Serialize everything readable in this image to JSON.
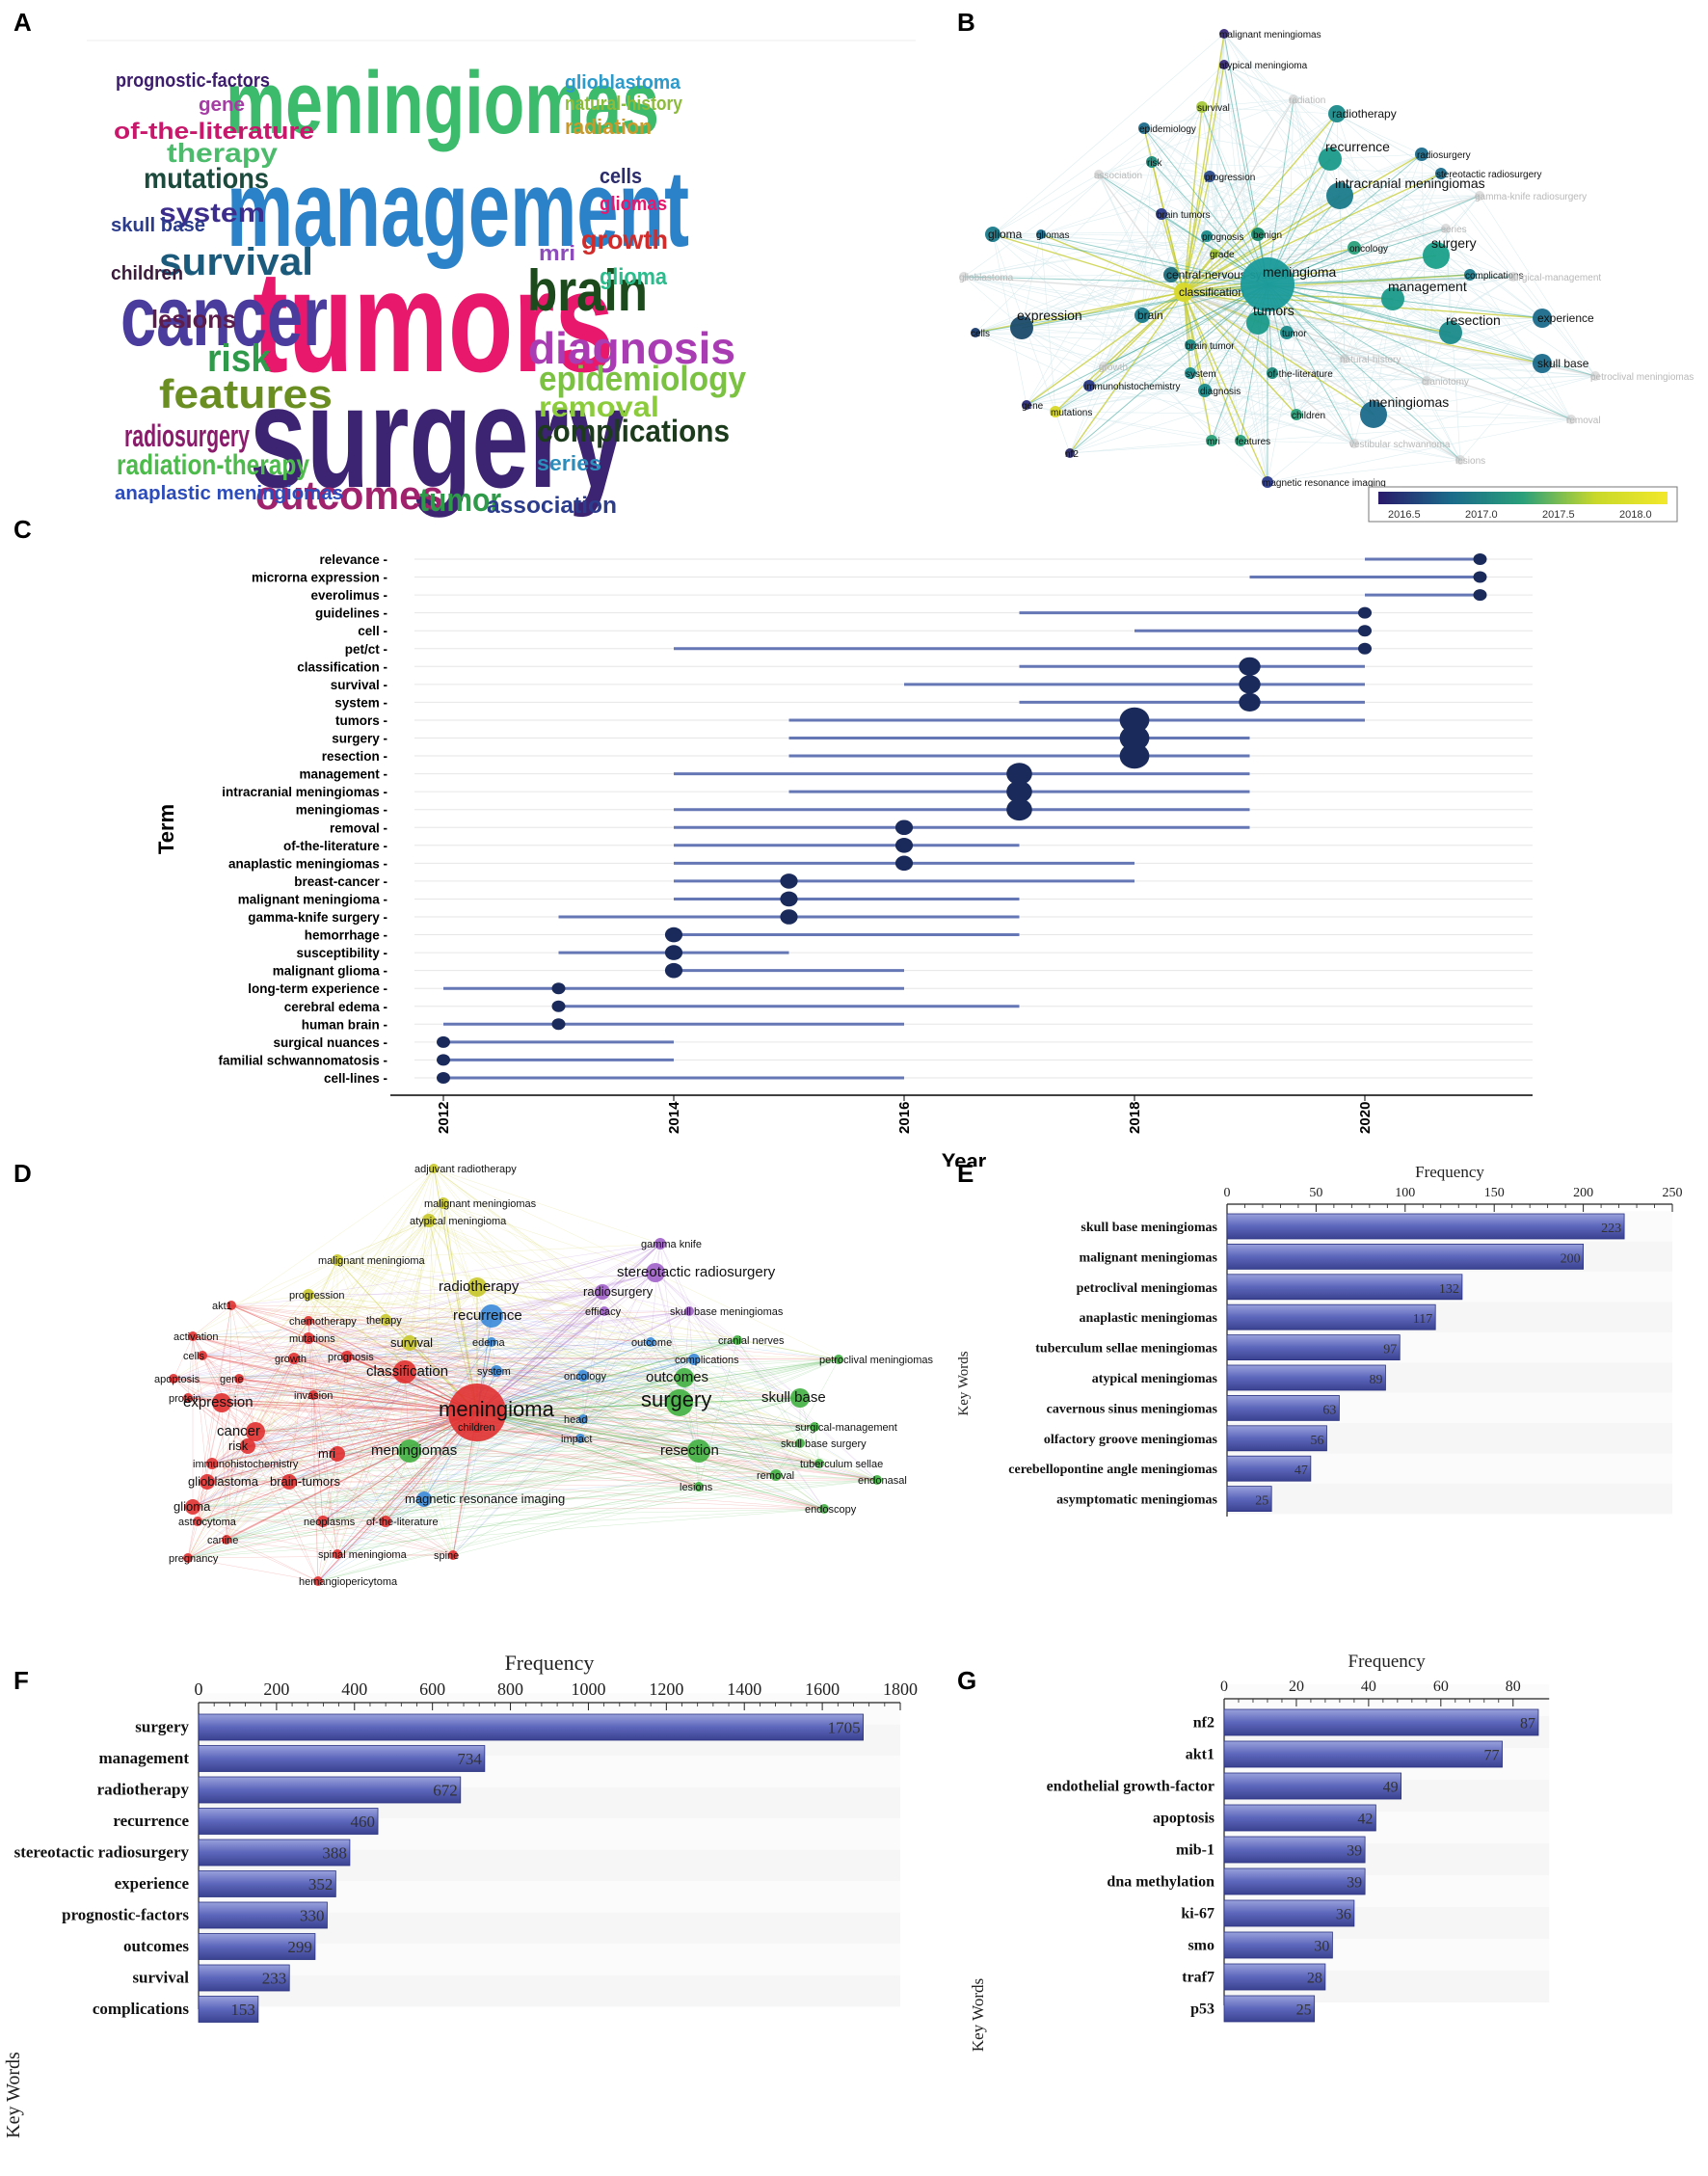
{
  "panel_labels": {
    "A": "A",
    "B": "B",
    "C": "C",
    "D": "D",
    "E": "E",
    "F": "F",
    "G": "G"
  },
  "wordcloud": {
    "words": [
      {
        "text": "meningiomas",
        "color": "#3dbb6c"
      },
      {
        "text": "management",
        "color": "#2c82c9"
      },
      {
        "text": "tumors",
        "color": "#e8186d"
      },
      {
        "text": "surgery",
        "color": "#3c2473"
      },
      {
        "text": "cancer",
        "color": "#4a3c9c"
      },
      {
        "text": "brain",
        "color": "#1c4a1c"
      },
      {
        "text": "diagnosis",
        "color": "#a93bb3"
      },
      {
        "text": "outcomes",
        "color": "#a1226c"
      },
      {
        "text": "features",
        "color": "#6b8e23"
      },
      {
        "text": "survival",
        "color": "#1c5a7c"
      },
      {
        "text": "risk",
        "color": "#2e9a4a"
      },
      {
        "text": "epidemiology",
        "color": "#7cc242"
      },
      {
        "text": "complications",
        "color": "#1c3a1c"
      },
      {
        "text": "radiosurgery",
        "color": "#8a1c6c"
      },
      {
        "text": "radiation-therapy",
        "color": "#4cbb4c"
      },
      {
        "text": "mutations",
        "color": "#1c4a3c"
      },
      {
        "text": "therapy",
        "color": "#4cbb6c"
      },
      {
        "text": "system",
        "color": "#3c2c8c"
      },
      {
        "text": "of-the-literature",
        "color": "#c8186c"
      },
      {
        "text": "tumor",
        "color": "#2e9a4a"
      },
      {
        "text": "removal",
        "color": "#8ccc3c"
      },
      {
        "text": "lesions",
        "color": "#5c1c4c"
      },
      {
        "text": "growth",
        "color": "#d02c2c"
      },
      {
        "text": "association",
        "color": "#2c3c8c"
      },
      {
        "text": "glioma",
        "color": "#2cbb8c"
      },
      {
        "text": "prognostic-factors",
        "color": "#3c1c6c"
      },
      {
        "text": "anaplastic meningiomas",
        "color": "#2c4cbb"
      },
      {
        "text": "glioblastoma",
        "color": "#2c9acb"
      },
      {
        "text": "natural-history",
        "color": "#8cbb3c"
      },
      {
        "text": "radiation",
        "color": "#c89a2c"
      },
      {
        "text": "skull base",
        "color": "#2c3c8c"
      },
      {
        "text": "children",
        "color": "#3c1c3c"
      },
      {
        "text": "gene",
        "color": "#a43ca4"
      },
      {
        "text": "cells",
        "color": "#2c2c6c"
      },
      {
        "text": "gliomas",
        "color": "#e8186d"
      },
      {
        "text": "mri",
        "color": "#8c4cbb"
      },
      {
        "text": "series",
        "color": "#2c8cbb"
      }
    ]
  },
  "network_b": {
    "nodes": [
      {
        "text": "malignant meningiomas",
        "color": "#3a2b7a"
      },
      {
        "text": "atypical meningioma",
        "color": "#3a2b7a"
      },
      {
        "text": "radiotherapy",
        "color": "#1a8a8a"
      },
      {
        "text": "survival",
        "color": "#a8c83a"
      },
      {
        "text": "radiation",
        "color": "#c8c8c8"
      },
      {
        "text": "epidemiology",
        "color": "#1a6a8a"
      },
      {
        "text": "recurrence",
        "color": "#1a9a8a"
      },
      {
        "text": "radiosurgery",
        "color": "#1a6a8a"
      },
      {
        "text": "stereotactic radiosurgery",
        "color": "#1a6a8a"
      },
      {
        "text": "risk",
        "color": "#1a8a7a"
      },
      {
        "text": "association",
        "color": "#c8c8c8"
      },
      {
        "text": "progression",
        "color": "#2a4a8a"
      },
      {
        "text": "intracranial meningiomas",
        "color": "#1a7a8a"
      },
      {
        "text": "gamma-knife radiosurgery",
        "color": "#c8c8c8"
      },
      {
        "text": "brain tumors",
        "color": "#2a3a8a"
      },
      {
        "text": "series",
        "color": "#c8c8c8"
      },
      {
        "text": "glioma",
        "color": "#1a7a8a"
      },
      {
        "text": "gliomas",
        "color": "#1a6a8a"
      },
      {
        "text": "prognosis",
        "color": "#1a8a8a"
      },
      {
        "text": "benign",
        "color": "#1a8a6a"
      },
      {
        "text": "oncology",
        "color": "#2aa07a"
      },
      {
        "text": "grade",
        "color": "#a8c83a"
      },
      {
        "text": "surgery",
        "color": "#1aa08a"
      },
      {
        "text": "central-nervous-system",
        "color": "#1a6a7a"
      },
      {
        "text": "glioblastoma",
        "color": "#c8c8c8"
      },
      {
        "text": "classification",
        "color": "#d8d82a"
      },
      {
        "text": "meningioma",
        "color": "#1a9a9a"
      },
      {
        "text": "complications",
        "color": "#1a7a8a"
      },
      {
        "text": "surgical-management",
        "color": "#c8c8c8"
      },
      {
        "text": "management",
        "color": "#1a9a8a"
      },
      {
        "text": "brain",
        "color": "#1a7a8a"
      },
      {
        "text": "tumors",
        "color": "#1a9a8a"
      },
      {
        "text": "experience",
        "color": "#1a6a8a"
      },
      {
        "text": "expression",
        "color": "#1a4a6a"
      },
      {
        "text": "cells",
        "color": "#1a3a6a"
      },
      {
        "text": "tumor",
        "color": "#1a8a8a"
      },
      {
        "text": "resection",
        "color": "#1a8a8a"
      },
      {
        "text": "brain tumor",
        "color": "#1a8a8a"
      },
      {
        "text": "natural-history",
        "color": "#c8c8c8"
      },
      {
        "text": "growth",
        "color": "#c8c8c8"
      },
      {
        "text": "skull base",
        "color": "#1a6a8a"
      },
      {
        "text": "system",
        "color": "#1a8a8a"
      },
      {
        "text": "of-the-literature",
        "color": "#1a8a7a"
      },
      {
        "text": "craniotomy",
        "color": "#c8c8c8"
      },
      {
        "text": "petroclival meningiomas",
        "color": "#c8c8c8"
      },
      {
        "text": "immunohistochemistry",
        "color": "#2a3a8a"
      },
      {
        "text": "diagnosis",
        "color": "#1a8a8a"
      },
      {
        "text": "gene",
        "color": "#2a2a7a"
      },
      {
        "text": "mutations",
        "color": "#d8d82a"
      },
      {
        "text": "children",
        "color": "#2aa07a"
      },
      {
        "text": "meningiomas",
        "color": "#1a6a8a"
      },
      {
        "text": "removal",
        "color": "#c8c8c8"
      },
      {
        "text": "nf2",
        "color": "#2a2a6a"
      },
      {
        "text": "mri",
        "color": "#2aa07a"
      },
      {
        "text": "features",
        "color": "#2aa07a"
      },
      {
        "text": "vestibular schwannoma",
        "color": "#c8c8c8"
      },
      {
        "text": "lesions",
        "color": "#c8c8c8"
      },
      {
        "text": "magnetic resonance imaging",
        "color": "#2a3a8a"
      }
    ],
    "colorbar": {
      "ticks": [
        "2016.5",
        "2017.0",
        "2017.5",
        "2018.0"
      ],
      "colors": [
        "#2a1a6a",
        "#1a6a8a",
        "#2aa07a",
        "#c8d82a",
        "#f2e82a"
      ]
    }
  },
  "timeline_c": {
    "ylabel": "Term",
    "xlabel": "Year",
    "xticks": [
      "2012",
      "2014",
      "2016",
      "2018",
      "2020"
    ],
    "terms": [
      {
        "term": "relevance",
        "start": 2020,
        "end": 2021,
        "peak": 2021,
        "size": 1
      },
      {
        "term": "microrna expression",
        "start": 2019,
        "end": 2021,
        "peak": 2021,
        "size": 1
      },
      {
        "term": "everolimus",
        "start": 2020,
        "end": 2021,
        "peak": 2021,
        "size": 1
      },
      {
        "term": "guidelines",
        "start": 2017,
        "end": 2020,
        "peak": 2020,
        "size": 1
      },
      {
        "term": "cell",
        "start": 2018,
        "end": 2020,
        "peak": 2020,
        "size": 1
      },
      {
        "term": "pet/ct",
        "start": 2014,
        "end": 2020,
        "peak": 2020,
        "size": 1
      },
      {
        "term": "classification",
        "start": 2017,
        "end": 2020,
        "peak": 2019,
        "size": 2
      },
      {
        "term": "survival",
        "start": 2016,
        "end": 2020,
        "peak": 2019,
        "size": 2
      },
      {
        "term": "system",
        "start": 2017,
        "end": 2020,
        "peak": 2019,
        "size": 2
      },
      {
        "term": "tumors",
        "start": 2015,
        "end": 2020,
        "peak": 2018,
        "size": 3
      },
      {
        "term": "surgery",
        "start": 2015,
        "end": 2019,
        "peak": 2018,
        "size": 3
      },
      {
        "term": "resection",
        "start": 2015,
        "end": 2019,
        "peak": 2018,
        "size": 3
      },
      {
        "term": "management",
        "start": 2014,
        "end": 2019,
        "peak": 2017,
        "size": 2.5
      },
      {
        "term": "intracranial meningiomas",
        "start": 2015,
        "end": 2019,
        "peak": 2017,
        "size": 2.5
      },
      {
        "term": "meningiomas",
        "start": 2014,
        "end": 2019,
        "peak": 2017,
        "size": 2.5
      },
      {
        "term": "removal",
        "start": 2014,
        "end": 2019,
        "peak": 2016,
        "size": 1.5
      },
      {
        "term": "of-the-literature",
        "start": 2014,
        "end": 2017,
        "peak": 2016,
        "size": 1.5
      },
      {
        "term": "anaplastic meningiomas",
        "start": 2014,
        "end": 2018,
        "peak": 2016,
        "size": 1.5
      },
      {
        "term": "breast-cancer",
        "start": 2014,
        "end": 2018,
        "peak": 2015,
        "size": 1.5
      },
      {
        "term": "malignant meningioma",
        "start": 2014,
        "end": 2017,
        "peak": 2015,
        "size": 1.5
      },
      {
        "term": "gamma-knife surgery",
        "start": 2013,
        "end": 2017,
        "peak": 2015,
        "size": 1.5
      },
      {
        "term": "hemorrhage",
        "start": 2014,
        "end": 2017,
        "peak": 2014,
        "size": 1.5
      },
      {
        "term": "susceptibility",
        "start": 2013,
        "end": 2015,
        "peak": 2014,
        "size": 1.5
      },
      {
        "term": "malignant glioma",
        "start": 2014,
        "end": 2016,
        "peak": 2014,
        "size": 1.5
      },
      {
        "term": "long-term experience",
        "start": 2012,
        "end": 2016,
        "peak": 2013,
        "size": 1
      },
      {
        "term": "cerebral edema",
        "start": 2013,
        "end": 2017,
        "peak": 2013,
        "size": 1
      },
      {
        "term": "human brain",
        "start": 2012,
        "end": 2016,
        "peak": 2013,
        "size": 1
      },
      {
        "term": "surgical nuances",
        "start": 2012,
        "end": 2014,
        "peak": 2012,
        "size": 1
      },
      {
        "term": "familial schwannomatosis",
        "start": 2012,
        "end": 2014,
        "peak": 2012,
        "size": 1
      },
      {
        "term": "cell-lines",
        "start": 2012,
        "end": 2016,
        "peak": 2012,
        "size": 1
      }
    ]
  },
  "network_d": {
    "nodes": [
      {
        "text": "adjuvant radiotherapy",
        "color": "#c8c82a"
      },
      {
        "text": "malignant meningiomas",
        "color": "#c8c82a"
      },
      {
        "text": "atypical meningioma",
        "color": "#c8c82a"
      },
      {
        "text": "malignant meningioma",
        "color": "#c8c82a"
      },
      {
        "text": "gamma knife",
        "color": "#a060c8"
      },
      {
        "text": "stereotactic radiosurgery",
        "color": "#a060c8"
      },
      {
        "text": "radiotherapy",
        "color": "#c8c82a"
      },
      {
        "text": "radiosurgery",
        "color": "#a060c8"
      },
      {
        "text": "progression",
        "color": "#c8c82a"
      },
      {
        "text": "akt1",
        "color": "#e03030"
      },
      {
        "text": "chemotherapy",
        "color": "#e03030"
      },
      {
        "text": "therapy",
        "color": "#c8c82a"
      },
      {
        "text": "recurrence",
        "color": "#3a8ad8"
      },
      {
        "text": "efficacy",
        "color": "#a060c8"
      },
      {
        "text": "skull base meningiomas",
        "color": "#a060c8"
      },
      {
        "text": "survival",
        "color": "#c8c82a"
      },
      {
        "text": "edema",
        "color": "#3a8ad8"
      },
      {
        "text": "outcome",
        "color": "#3a8ad8"
      },
      {
        "text": "cranial nerves",
        "color": "#40b040"
      },
      {
        "text": "activation",
        "color": "#e03030"
      },
      {
        "text": "mutations",
        "color": "#e03030"
      },
      {
        "text": "prognosis",
        "color": "#e03030"
      },
      {
        "text": "complications",
        "color": "#3a8ad8"
      },
      {
        "text": "cells",
        "color": "#e03030"
      },
      {
        "text": "growth",
        "color": "#e03030"
      },
      {
        "text": "classification",
        "color": "#e03030"
      },
      {
        "text": "system",
        "color": "#3a8ad8"
      },
      {
        "text": "outcomes",
        "color": "#40b040"
      },
      {
        "text": "petroclival meningiomas",
        "color": "#40b040"
      },
      {
        "text": "apoptosis",
        "color": "#e03030"
      },
      {
        "text": "gene",
        "color": "#e03030"
      },
      {
        "text": "oncology",
        "color": "#3a8ad8"
      },
      {
        "text": "surgery",
        "color": "#40b040"
      },
      {
        "text": "skull base",
        "color": "#40b040"
      },
      {
        "text": "invasion",
        "color": "#e03030"
      },
      {
        "text": "protein",
        "color": "#e03030"
      },
      {
        "text": "expression",
        "color": "#e03030"
      },
      {
        "text": "meningioma",
        "color": "#e03030"
      },
      {
        "text": "head",
        "color": "#3a8ad8"
      },
      {
        "text": "surgical-management",
        "color": "#40b040"
      },
      {
        "text": "cancer",
        "color": "#e03030"
      },
      {
        "text": "children",
        "color": "#e03030"
      },
      {
        "text": "impact",
        "color": "#3a8ad8"
      },
      {
        "text": "skull base surgery",
        "color": "#40b040"
      },
      {
        "text": "immunohistochemistry",
        "color": "#e03030"
      },
      {
        "text": "risk",
        "color": "#e03030"
      },
      {
        "text": "mri",
        "color": "#e03030"
      },
      {
        "text": "meningiomas",
        "color": "#40b040"
      },
      {
        "text": "resection",
        "color": "#40b040"
      },
      {
        "text": "tuberculum sellae",
        "color": "#40b040"
      },
      {
        "text": "glioblastoma",
        "color": "#e03030"
      },
      {
        "text": "brain-tumors",
        "color": "#e03030"
      },
      {
        "text": "magnetic resonance imaging",
        "color": "#3a8ad8"
      },
      {
        "text": "removal",
        "color": "#40b040"
      },
      {
        "text": "endonasal",
        "color": "#40b040"
      },
      {
        "text": "lesions",
        "color": "#40b040"
      },
      {
        "text": "glioma",
        "color": "#e03030"
      },
      {
        "text": "endoscopy",
        "color": "#40b040"
      },
      {
        "text": "astrocytoma",
        "color": "#e03030"
      },
      {
        "text": "neoplasms",
        "color": "#e03030"
      },
      {
        "text": "of-the-literature",
        "color": "#e03030"
      },
      {
        "text": "canine",
        "color": "#e03030"
      },
      {
        "text": "spinal meningioma",
        "color": "#e03030"
      },
      {
        "text": "spine",
        "color": "#e03030"
      },
      {
        "text": "pregnancy",
        "color": "#e03030"
      },
      {
        "text": "hemangiopericytoma",
        "color": "#e03030"
      }
    ]
  },
  "chart_data": [
    {
      "id": "E",
      "type": "bar",
      "orientation": "horizontal",
      "xlabel": "Frequency",
      "ylabel": "Key Words",
      "xlim": [
        0,
        250
      ],
      "xticks": [
        0,
        50,
        100,
        150,
        200,
        250
      ],
      "categories": [
        "skull base meningiomas",
        "malignant meningiomas",
        "petroclival meningiomas",
        "anaplastic meningiomas",
        "tuberculum sellae meningiomas",
        "atypical meningiomas",
        "cavernous sinus meningiomas",
        "olfactory groove meningiomas",
        "cerebellopontine angle meningiomas",
        "asymptomatic meningiomas"
      ],
      "values": [
        223,
        200,
        132,
        117,
        97,
        89,
        63,
        56,
        47,
        25
      ],
      "value_labels": [
        "223",
        "200",
        "132",
        "117",
        "97",
        "89",
        "63",
        "56",
        "47",
        "25"
      ]
    },
    {
      "id": "F",
      "type": "bar",
      "orientation": "horizontal",
      "xlabel": "Frequency",
      "ylabel": "Key Words",
      "xlim": [
        0,
        1800
      ],
      "xticks": [
        0,
        200,
        400,
        600,
        800,
        1000,
        1200,
        1400,
        1600,
        1800
      ],
      "categories": [
        "surgery",
        "management",
        "radiotherapy",
        "recurrence",
        "stereotactic radiosurgery",
        "experience",
        "prognostic-factors",
        "outcomes",
        "survival",
        "complications"
      ],
      "values": [
        1705,
        734,
        672,
        460,
        388,
        352,
        330,
        299,
        233,
        153
      ],
      "value_labels": [
        "1705",
        "734",
        "672",
        "460",
        "388",
        "352",
        "330",
        "299",
        "233",
        "153"
      ]
    },
    {
      "id": "G",
      "type": "bar",
      "orientation": "horizontal",
      "xlabel": "Frequency",
      "ylabel": "Key Words",
      "xlim": [
        0,
        90
      ],
      "xticks": [
        0,
        20,
        40,
        60,
        80
      ],
      "categories": [
        "nf2",
        "akt1",
        "endothelial growth-factor",
        "apoptosis",
        "mib-1",
        "dna methylation",
        "ki-67",
        "smo",
        "traf7",
        "p53"
      ],
      "values": [
        87,
        77,
        49,
        42,
        39,
        39,
        36,
        30,
        28,
        25
      ],
      "value_labels": [
        "87",
        "77",
        "49",
        "42",
        "39",
        "39",
        "36",
        "30",
        "28",
        "25"
      ]
    }
  ]
}
